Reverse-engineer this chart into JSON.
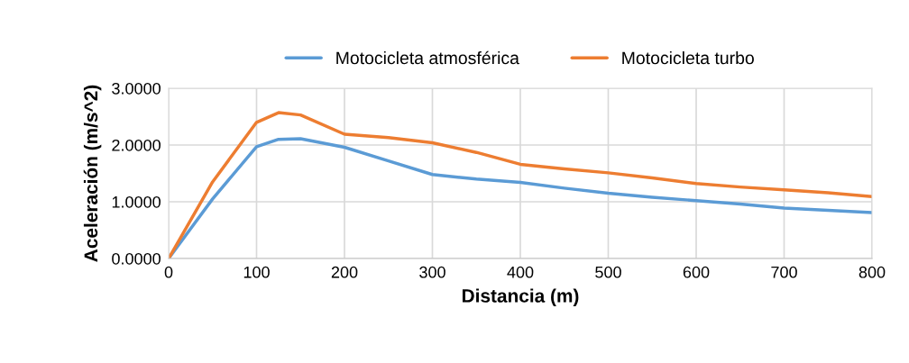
{
  "chart_data": {
    "type": "line",
    "xlabel": "Distancia (m)",
    "ylabel": "Aceleración (m/s^2)",
    "x": [
      0,
      50,
      100,
      125,
      150,
      200,
      250,
      300,
      350,
      400,
      450,
      500,
      550,
      600,
      650,
      700,
      750,
      800
    ],
    "series": [
      {
        "name": "Motocicleta atmosférica",
        "color": "#5b9bd5",
        "values": [
          0,
          1.05,
          1.97,
          2.1,
          2.11,
          1.96,
          1.72,
          1.48,
          1.4,
          1.34,
          1.24,
          1.15,
          1.08,
          1.02,
          0.96,
          0.89,
          0.85,
          0.81
        ]
      },
      {
        "name": "Motocicleta turbo",
        "color": "#ed7d31",
        "values": [
          0,
          1.35,
          2.4,
          2.57,
          2.53,
          2.19,
          2.13,
          2.04,
          1.87,
          1.66,
          1.58,
          1.51,
          1.42,
          1.32,
          1.26,
          1.21,
          1.16,
          1.09
        ]
      }
    ],
    "xlim": [
      0,
      800
    ],
    "xticks": [
      0,
      100,
      200,
      300,
      400,
      500,
      600,
      700,
      800
    ],
    "ylim": [
      0,
      3
    ],
    "yticks": [
      {
        "value": 0,
        "label": "0.0000"
      },
      {
        "value": 1,
        "label": "1.0000"
      },
      {
        "value": 2,
        "label": "2.0000"
      },
      {
        "value": 3,
        "label": "3.0000"
      }
    ],
    "grid": true,
    "legend": "top",
    "marker": "none",
    "line_style": "solid"
  }
}
